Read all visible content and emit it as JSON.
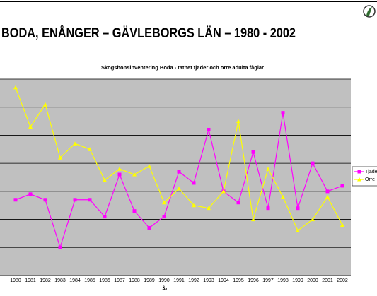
{
  "chart_data": {
    "type": "line",
    "heading": "BODA, ENÅNGER – GÄVLEBORGS LÄN – 1980 - 2002",
    "title": "Skogshönsinventering Boda - täthet tjäder och orre adulta fåglar",
    "xlabel": "År",
    "categories": [
      "1980",
      "1981",
      "1982",
      "1983",
      "1984",
      "1985",
      "1986",
      "1987",
      "1988",
      "1989",
      "1990",
      "1991",
      "1992",
      "1993",
      "1994",
      "1995",
      "1996",
      "1997",
      "1998",
      "1999",
      "2000",
      "2001",
      "2002"
    ],
    "series": [
      {
        "name": "Tjäder",
        "color": "#ff00ff",
        "marker": "square",
        "values": [
          2.7,
          2.9,
          2.7,
          1.0,
          2.7,
          2.7,
          2.1,
          3.6,
          2.3,
          1.7,
          2.1,
          3.7,
          3.3,
          5.2,
          3.0,
          2.6,
          4.4,
          2.4,
          5.8,
          2.4,
          4.0,
          3.0,
          3.2
        ]
      },
      {
        "name": "Orre",
        "color": "#ffff00",
        "marker": "triangle",
        "values": [
          6.7,
          5.3,
          6.1,
          4.2,
          4.7,
          4.5,
          3.4,
          3.8,
          3.6,
          3.9,
          2.6,
          3.1,
          2.5,
          2.4,
          3.0,
          5.5,
          2.0,
          3.8,
          2.8,
          1.6,
          2.0,
          2.8,
          1.8
        ]
      }
    ],
    "ylim": [
      0,
      7
    ],
    "yticks": [
      0,
      1,
      2,
      3,
      4,
      5,
      6,
      7
    ],
    "grid": true,
    "legend": "right",
    "plot_background": "#c0c0c0"
  }
}
